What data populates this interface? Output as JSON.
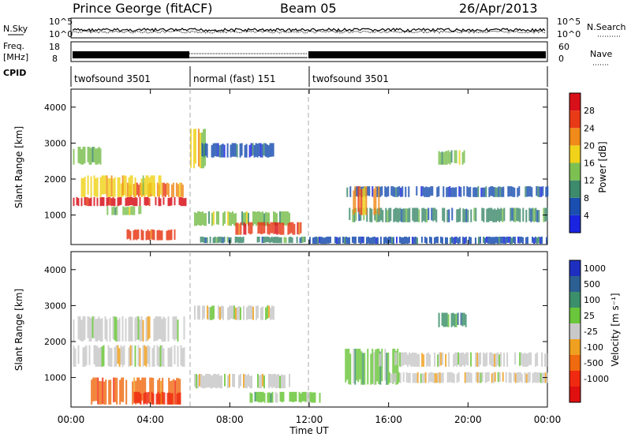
{
  "header": {
    "station": "Prince George (fitACF)",
    "beam": "Beam 05",
    "date": "26/Apr/2013"
  },
  "noise_panel": {
    "left_label": "N.Sky",
    "right_label": "N.Search",
    "left_ticks": [
      "10^5",
      "10^0"
    ],
    "right_ticks": [
      "10^5",
      "10^0"
    ]
  },
  "freq_panel": {
    "left_label_1": "Freq.",
    "left_label_2": "[MHz]",
    "left_ticks": [
      "18",
      "8"
    ],
    "right_label": "Nave",
    "right_ticks": [
      "60",
      "0"
    ]
  },
  "cpid_panel": {
    "label": "CPID",
    "segments": [
      {
        "start_hour": 0,
        "end_hour": 6,
        "label": "twofsound 3501"
      },
      {
        "start_hour": 6,
        "end_hour": 12,
        "label": "normal (fast) 151"
      },
      {
        "start_hour": 12,
        "end_hour": 24,
        "label": "twofsound 3501"
      }
    ]
  },
  "time_axis": {
    "label": "Time UT",
    "ticks": [
      "00:00",
      "04:00",
      "08:00",
      "12:00",
      "16:00",
      "20:00",
      "00:00"
    ]
  },
  "range_axis": {
    "label": "Slant Range [km]",
    "ticks": [
      "1000",
      "2000",
      "3000",
      "4000"
    ]
  },
  "power_colorbar": {
    "label": "Power [dB]",
    "ticks": [
      "4",
      "8",
      "12",
      "16",
      "20",
      "24",
      "28"
    ],
    "colors": [
      "#1a23e0",
      "#1a4fb0",
      "#3d8a6c",
      "#7cc052",
      "#f0d21a",
      "#f08a1a",
      "#e83a17",
      "#d8101a"
    ]
  },
  "velocity_colorbar": {
    "label": "Velocity [m s⁻¹]",
    "ticks": [
      "1000",
      "500",
      "100",
      "25",
      "-25",
      "-100",
      "-500",
      "-1000"
    ],
    "colors": [
      "#1e2fc0",
      "#2c5f92",
      "#3b8f6a",
      "#6ac63a",
      "#c9c9c9",
      "#f0a020",
      "#f06a10",
      "#f02a10",
      "#e01010"
    ]
  },
  "chart_data": [
    {
      "type": "heatmap",
      "title": "Power",
      "xlabel": "Time UT",
      "ylabel": "Slant Range [km]",
      "xlim": [
        0,
        24
      ],
      "ylim": [
        180,
        4500
      ],
      "colorbar": "Power [dB]",
      "cells": [
        {
          "t0": 0.1,
          "t1": 1.5,
          "r0": 2400,
          "r1": 2900,
          "level": 3
        },
        {
          "t0": 0.1,
          "t1": 5.8,
          "r0": 1250,
          "r1": 1500,
          "level": 7
        },
        {
          "t0": 2.5,
          "t1": 5.8,
          "r0": 1500,
          "r1": 1900,
          "level": 5
        },
        {
          "t0": 0.5,
          "t1": 4.5,
          "r0": 1500,
          "r1": 2100,
          "level": 4
        },
        {
          "t0": 1.8,
          "t1": 3.5,
          "r0": 1000,
          "r1": 1250,
          "level": 3
        },
        {
          "t0": 2.8,
          "t1": 5.2,
          "r0": 300,
          "r1": 600,
          "level": 6
        },
        {
          "t0": 6.0,
          "t1": 6.8,
          "r0": 2300,
          "r1": 3400,
          "level": 4
        },
        {
          "t0": 6.5,
          "t1": 10.2,
          "r0": 2600,
          "r1": 3000,
          "level": 1
        },
        {
          "t0": 6.2,
          "t1": 11.0,
          "r0": 700,
          "r1": 1100,
          "level": 3
        },
        {
          "t0": 8.2,
          "t1": 11.6,
          "r0": 450,
          "r1": 800,
          "level": 6
        },
        {
          "t0": 6.5,
          "t1": 11.8,
          "r0": 220,
          "r1": 400,
          "level": 2
        },
        {
          "t0": 13.8,
          "t1": 24.0,
          "r0": 1500,
          "r1": 1800,
          "level": 1
        },
        {
          "t0": 14.0,
          "t1": 24.0,
          "r0": 800,
          "r1": 1200,
          "level": 2
        },
        {
          "t0": 14.2,
          "t1": 15.5,
          "r0": 1000,
          "r1": 1800,
          "level": 5
        },
        {
          "t0": 18.5,
          "t1": 19.8,
          "r0": 2400,
          "r1": 2800,
          "level": 3
        },
        {
          "t0": 12.0,
          "t1": 24.0,
          "r0": 200,
          "r1": 400,
          "level": 1
        }
      ]
    },
    {
      "type": "heatmap",
      "title": "Velocity",
      "xlabel": "Time UT",
      "ylabel": "Slant Range [km]",
      "xlim": [
        0,
        24
      ],
      "ylim": [
        180,
        4500
      ],
      "colorbar": "Velocity [m s⁻¹]",
      "cells": [
        {
          "t0": 0.1,
          "t1": 5.8,
          "r0": 2000,
          "r1": 2700,
          "level": 4
        },
        {
          "t0": 0.1,
          "t1": 5.8,
          "r0": 1300,
          "r1": 1900,
          "level": 4
        },
        {
          "t0": 1.0,
          "t1": 5.5,
          "r0": 250,
          "r1": 1000,
          "level": 6
        },
        {
          "t0": 3.0,
          "t1": 5.5,
          "r0": 250,
          "r1": 600,
          "level": 7
        },
        {
          "t0": 6.2,
          "t1": 10.2,
          "r0": 2600,
          "r1": 3000,
          "level": 4
        },
        {
          "t0": 6.2,
          "t1": 11.0,
          "r0": 700,
          "r1": 1100,
          "level": 4
        },
        {
          "t0": 9.0,
          "t1": 12.5,
          "r0": 300,
          "r1": 600,
          "level": 3
        },
        {
          "t0": 13.8,
          "t1": 16.5,
          "r0": 800,
          "r1": 1800,
          "level": 3
        },
        {
          "t0": 15.5,
          "t1": 24.0,
          "r0": 1300,
          "r1": 1700,
          "level": 4
        },
        {
          "t0": 16.0,
          "t1": 24.0,
          "r0": 850,
          "r1": 1150,
          "level": 4
        },
        {
          "t0": 18.5,
          "t1": 20.0,
          "r0": 2400,
          "r1": 2800,
          "level": 2
        }
      ]
    }
  ]
}
